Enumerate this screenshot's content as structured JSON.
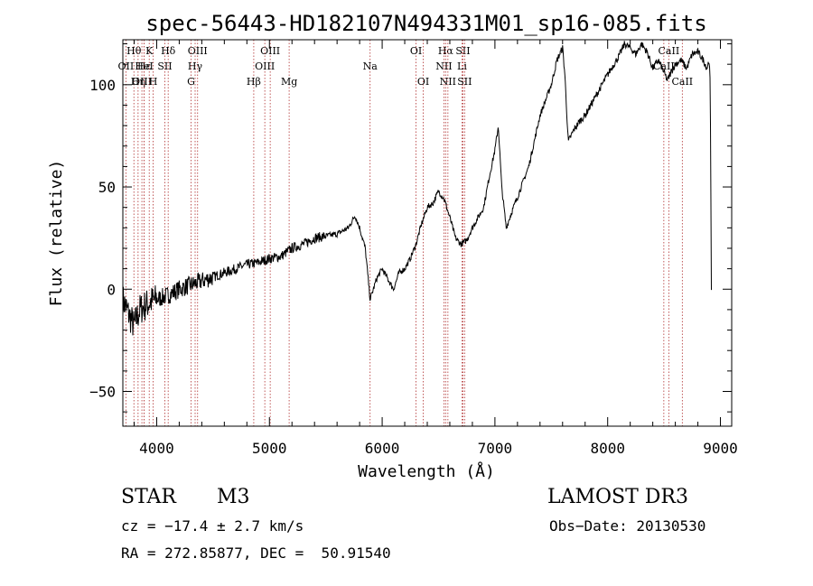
{
  "chart_data": {
    "type": "line",
    "title": "spec-56443-HD182107N494331M01_sp16-085.fits",
    "xlabel": "Wavelength (Å)",
    "ylabel": "Flux (relative)",
    "xlim": [
      3700,
      9100
    ],
    "ylim": [
      -67,
      122
    ],
    "xticks": [
      4000,
      5000,
      6000,
      7000,
      8000,
      9000
    ],
    "xtick_labels": [
      "4000",
      "5000",
      "6000",
      "7000",
      "8000",
      "9000"
    ],
    "yticks": [
      -50,
      0,
      50,
      100
    ],
    "ytick_labels": [
      "−50",
      "0",
      "50",
      "100"
    ],
    "grid": false,
    "series": [
      {
        "name": "flux",
        "x": [
          3700,
          3750,
          3800,
          3850,
          3900,
          3950,
          4000,
          4100,
          4200,
          4300,
          4400,
          4500,
          4600,
          4700,
          4800,
          4900,
          5000,
          5100,
          5200,
          5300,
          5400,
          5500,
          5600,
          5700,
          5760,
          5800,
          5850,
          5893,
          5950,
          6000,
          6050,
          6100,
          6150,
          6200,
          6250,
          6300,
          6350,
          6400,
          6450,
          6500,
          6550,
          6600,
          6650,
          6700,
          6750,
          6800,
          6850,
          6900,
          6950,
          7000,
          7030,
          7060,
          7100,
          7150,
          7200,
          7300,
          7400,
          7500,
          7550,
          7600,
          7620,
          7650,
          7700,
          7750,
          7800,
          7900,
          8000,
          8100,
          8150,
          8200,
          8250,
          8300,
          8350,
          8400,
          8450,
          8500,
          8530,
          8560,
          8600,
          8650,
          8700,
          8750,
          8800,
          8850,
          8880,
          8900,
          8910,
          8920
        ],
        "y": [
          -5,
          -12,
          -18,
          -10,
          -8,
          -6,
          -5,
          -3,
          0,
          2,
          4,
          6,
          8,
          10,
          12,
          13,
          15,
          16,
          20,
          22,
          25,
          26,
          27,
          30,
          36,
          30,
          20,
          -5,
          5,
          10,
          5,
          0,
          8,
          10,
          15,
          22,
          32,
          40,
          42,
          48,
          44,
          35,
          25,
          22,
          24,
          30,
          35,
          40,
          55,
          68,
          80,
          50,
          30,
          38,
          45,
          60,
          85,
          100,
          112,
          118,
          105,
          72,
          78,
          82,
          85,
          95,
          105,
          114,
          120,
          118,
          115,
          120,
          116,
          108,
          112,
          106,
          102,
          106,
          110,
          112,
          108,
          115,
          116,
          112,
          108,
          112,
          100,
          0
        ]
      }
    ],
    "lines": [
      {
        "label": "Hθ",
        "x": 3798,
        "row": 0
      },
      {
        "label": "OII",
        "x": 3727,
        "row": 1
      },
      {
        "label": "OIII",
        "x": 3869,
        "row": 2
      },
      {
        "label": "Hε",
        "x": 3889,
        "row": 1
      },
      {
        "label": "Hη",
        "x": 3835,
        "row": 2
      },
      {
        "label": "K",
        "x": 3934,
        "row": 0
      },
      {
        "label": "H",
        "x": 3969,
        "row": 2
      },
      {
        "label": "HeI",
        "x": 3889,
        "row": 1
      },
      {
        "label": "SII",
        "x": 4072,
        "row": 1
      },
      {
        "label": "Hδ",
        "x": 4102,
        "row": 0
      },
      {
        "label": "OIII",
        "x": 4363,
        "row": 0
      },
      {
        "label": "Hγ",
        "x": 4341,
        "row": 1
      },
      {
        "label": "G",
        "x": 4305,
        "row": 2
      },
      {
        "label": "Hβ",
        "x": 4861,
        "row": 2
      },
      {
        "label": "OIII",
        "x": 5007,
        "row": 0
      },
      {
        "label": "OIII",
        "x": 4959,
        "row": 1
      },
      {
        "label": "Mg",
        "x": 5175,
        "row": 2
      },
      {
        "label": "Na",
        "x": 5893,
        "row": 1
      },
      {
        "label": "OI",
        "x": 6300,
        "row": 0
      },
      {
        "label": "OI",
        "x": 6364,
        "row": 2
      },
      {
        "label": "Hα",
        "x": 6563,
        "row": 0
      },
      {
        "label": "SII",
        "x": 6716,
        "row": 0
      },
      {
        "label": "NII",
        "x": 6548,
        "row": 1
      },
      {
        "label": "Li",
        "x": 6708,
        "row": 1
      },
      {
        "label": "NII",
        "x": 6583,
        "row": 2
      },
      {
        "label": "SII",
        "x": 6731,
        "row": 2
      },
      {
        "label": "CaII",
        "x": 8542,
        "row": 0
      },
      {
        "label": "CaII",
        "x": 8498,
        "row": 1
      },
      {
        "label": "CaII",
        "x": 8662,
        "row": 2
      }
    ]
  },
  "info": {
    "class_label": "STAR",
    "subclass": "M3",
    "survey": "LAMOST DR3",
    "cz": "cz = −17.4 ± 2.7 km/s",
    "obs_date": "Obs−Date: 20130530",
    "coords": "RA = 272.85877, DEC =  50.91540"
  },
  "colors": {
    "spectrum": "#000000",
    "line_markers": "#b03030",
    "background": "#ffffff"
  }
}
